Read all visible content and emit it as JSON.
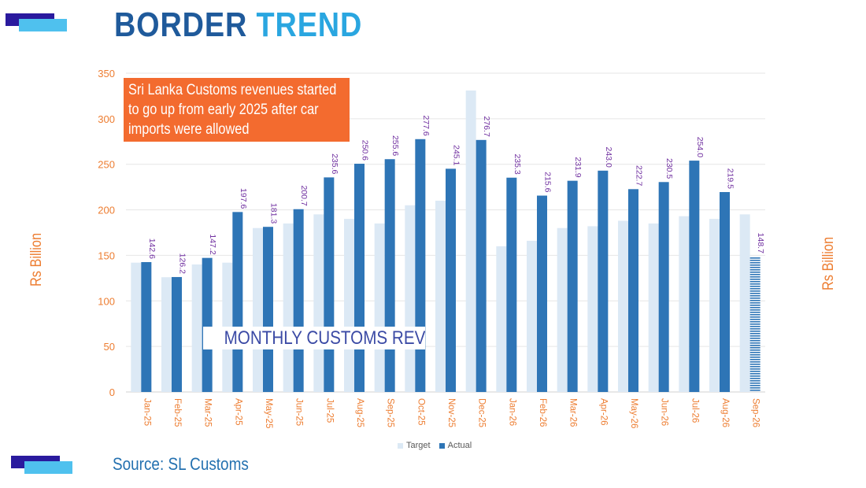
{
  "header": {
    "title_word1": "BORDER",
    "title_word2": "TREND"
  },
  "source": "Source: SL Customs",
  "annotation": "Sri Lanka Customs revenues started to  go up from early 2025 after car imports were allowed",
  "colors": {
    "target": "#dce9f5",
    "actual": "#2e75b6",
    "label": "#7030a0",
    "axis_text": "#ed7d31",
    "grid": "#e6e6e6"
  },
  "chart_data": {
    "type": "bar",
    "title": "MONTHLY CUSTOMS REVENUES",
    "ylabel": "Rs Billion",
    "ylim": [
      0,
      350
    ],
    "yticks": [
      0,
      50,
      100,
      150,
      200,
      250,
      300,
      350
    ],
    "grid": true,
    "legend_position": "bottom",
    "categories": [
      "Jan-25",
      "Feb-25",
      "Mar-25",
      "Apr-25",
      "May-25",
      "Jun-25",
      "Jul-25",
      "Aug-25",
      "Sep-25",
      "Oct-25",
      "Nov-25",
      "Dec-25",
      "Jan-26",
      "Feb-26",
      "Mar-26",
      "Apr-26",
      "May-26",
      "Jun-26",
      "Jul-26",
      "Aug-26",
      "Sep-26"
    ],
    "series": [
      {
        "name": "Target",
        "values": [
          142,
          126,
          140,
          142,
          180,
          185,
          195,
          190,
          185,
          205,
          210,
          331,
          160,
          166,
          180,
          182,
          188,
          185,
          193,
          190,
          195
        ]
      },
      {
        "name": "Actual",
        "values": [
          142.6,
          126.2,
          147.2,
          197.6,
          181.3,
          200.7,
          235.6,
          250.6,
          255.6,
          277.6,
          245.1,
          276.7,
          235.3,
          215.6,
          231.9,
          243.0,
          222.7,
          230.5,
          254.0,
          219.5,
          148.7
        ],
        "labels": [
          "142.6",
          "126.2",
          "147.2",
          "197.6",
          "181.3",
          "200.7",
          "235.6",
          "250.6",
          "255.6",
          "277.6",
          "245.1",
          "276.7",
          "235.3",
          "215.6",
          "231.9",
          "243.0",
          "222.7",
          "230.5",
          "254.0",
          "219.5",
          "148.7"
        ]
      }
    ]
  }
}
